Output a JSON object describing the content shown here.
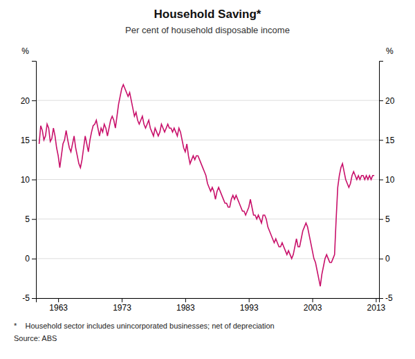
{
  "chart_data": {
    "type": "line",
    "title": "Household Saving*",
    "subtitle": "Per cent of household disposable income",
    "ylabel": "%",
    "y2label": "%",
    "annotations": [
      "*    Household sector includes unincorporated businesses; net of depreciation",
      "Source: ABS"
    ],
    "color": "#C8106A",
    "grid": true,
    "xlim": [
      1959.5,
      2013.5
    ],
    "xticks": [
      1963,
      1973,
      1983,
      1993,
      2003,
      2013
    ],
    "ylim": [
      -5,
      25
    ],
    "yticks": [
      -5,
      0,
      5,
      10,
      15,
      20
    ],
    "y2lim": [
      -5,
      25
    ],
    "y2ticks": [
      -5,
      0,
      5,
      10,
      15,
      20
    ],
    "x": [
      1960.0,
      1960.25,
      1960.5,
      1960.75,
      1961.0,
      1961.25,
      1961.5,
      1961.75,
      1962.0,
      1962.25,
      1962.5,
      1962.75,
      1963.0,
      1963.25,
      1963.5,
      1963.75,
      1964.0,
      1964.25,
      1964.5,
      1964.75,
      1965.0,
      1965.25,
      1965.5,
      1965.75,
      1966.0,
      1966.25,
      1966.5,
      1966.75,
      1967.0,
      1967.25,
      1967.5,
      1967.75,
      1968.0,
      1968.25,
      1968.5,
      1968.75,
      1969.0,
      1969.25,
      1969.5,
      1969.75,
      1970.0,
      1970.25,
      1970.5,
      1970.75,
      1971.0,
      1971.25,
      1971.5,
      1971.75,
      1972.0,
      1972.25,
      1972.5,
      1972.75,
      1973.0,
      1973.25,
      1973.5,
      1973.75,
      1974.0,
      1974.25,
      1974.5,
      1974.75,
      1975.0,
      1975.25,
      1975.5,
      1975.75,
      1976.0,
      1976.25,
      1976.5,
      1976.75,
      1977.0,
      1977.25,
      1977.5,
      1977.75,
      1978.0,
      1978.25,
      1978.5,
      1978.75,
      1979.0,
      1979.25,
      1979.5,
      1979.75,
      1980.0,
      1980.25,
      1980.5,
      1980.75,
      1981.0,
      1981.25,
      1981.5,
      1981.75,
      1982.0,
      1982.25,
      1982.5,
      1982.75,
      1983.0,
      1983.25,
      1983.5,
      1983.75,
      1984.0,
      1984.25,
      1984.5,
      1984.75,
      1985.0,
      1985.25,
      1985.5,
      1985.75,
      1986.0,
      1986.25,
      1986.5,
      1986.75,
      1987.0,
      1987.25,
      1987.5,
      1987.75,
      1988.0,
      1988.25,
      1988.5,
      1988.75,
      1989.0,
      1989.25,
      1989.5,
      1989.75,
      1990.0,
      1990.25,
      1990.5,
      1990.75,
      1991.0,
      1991.25,
      1991.5,
      1991.75,
      1992.0,
      1992.25,
      1992.5,
      1992.75,
      1993.0,
      1993.25,
      1993.5,
      1993.75,
      1994.0,
      1994.25,
      1994.5,
      1994.75,
      1995.0,
      1995.25,
      1995.5,
      1995.75,
      1996.0,
      1996.25,
      1996.5,
      1996.75,
      1997.0,
      1997.25,
      1997.5,
      1997.75,
      1998.0,
      1998.25,
      1998.5,
      1998.75,
      1999.0,
      1999.25,
      1999.5,
      1999.75,
      2000.0,
      2000.25,
      2000.5,
      2000.75,
      2001.0,
      2001.25,
      2001.5,
      2001.75,
      2002.0,
      2002.25,
      2002.5,
      2002.75,
      2003.0,
      2003.25,
      2003.5,
      2003.75,
      2004.0,
      2004.25,
      2004.5,
      2004.75,
      2005.0,
      2005.25,
      2005.5,
      2005.75,
      2006.0,
      2006.25,
      2006.5,
      2006.75,
      2007.0,
      2007.25,
      2007.5,
      2007.75,
      2008.0,
      2008.25,
      2008.5,
      2008.75,
      2009.0,
      2009.25,
      2009.5,
      2009.75,
      2010.0,
      2010.25,
      2010.5,
      2010.75,
      2011.0,
      2011.25,
      2011.5,
      2011.75,
      2012.0,
      2012.25,
      2012.5,
      2012.75
    ],
    "values": [
      14.5,
      16.8,
      16.2,
      15.0,
      15.5,
      17.0,
      16.5,
      14.8,
      15.2,
      16.5,
      15.5,
      14.0,
      13.0,
      11.5,
      13.0,
      14.5,
      15.0,
      16.2,
      15.0,
      14.0,
      13.5,
      14.5,
      15.5,
      14.0,
      13.0,
      12.0,
      11.5,
      12.5,
      14.0,
      15.5,
      14.5,
      13.5,
      15.0,
      16.0,
      16.8,
      17.0,
      17.5,
      16.5,
      15.5,
      16.5,
      16.0,
      17.0,
      16.5,
      15.5,
      16.5,
      17.5,
      18.0,
      17.5,
      16.5,
      18.0,
      19.5,
      20.5,
      21.5,
      22.0,
      21.5,
      21.0,
      20.5,
      21.0,
      20.0,
      19.0,
      18.0,
      18.5,
      17.5,
      17.0,
      17.5,
      18.0,
      17.0,
      16.5,
      17.0,
      17.5,
      16.5,
      16.0,
      15.5,
      16.5,
      16.0,
      15.5,
      16.0,
      17.0,
      16.5,
      16.0,
      16.5,
      17.0,
      16.5,
      16.5,
      16.0,
      16.5,
      16.0,
      15.5,
      16.5,
      16.0,
      15.0,
      14.0,
      13.5,
      14.5,
      13.0,
      12.0,
      12.5,
      13.0,
      12.5,
      13.0,
      13.0,
      12.5,
      12.0,
      11.5,
      11.0,
      10.5,
      9.5,
      9.0,
      8.5,
      9.0,
      8.5,
      7.5,
      8.5,
      9.0,
      8.5,
      8.0,
      7.5,
      7.0,
      7.0,
      6.5,
      6.5,
      7.5,
      8.0,
      7.5,
      8.0,
      7.5,
      7.0,
      6.5,
      6.0,
      6.0,
      5.5,
      6.0,
      6.5,
      7.5,
      6.5,
      5.5,
      5.5,
      5.0,
      5.5,
      5.0,
      4.5,
      5.5,
      5.5,
      5.0,
      4.0,
      3.5,
      3.0,
      2.5,
      2.0,
      2.5,
      2.0,
      1.5,
      1.5,
      2.0,
      1.5,
      1.0,
      0.5,
      1.0,
      0.5,
      0.0,
      0.5,
      1.5,
      2.5,
      1.5,
      1.5,
      2.5,
      3.5,
      4.0,
      4.5,
      4.0,
      3.0,
      2.0,
      1.0,
      0.0,
      -0.5,
      -1.5,
      -2.5,
      -3.5,
      -2.0,
      -1.0,
      0.0,
      0.5,
      0.0,
      -0.5,
      -0.5,
      0.0,
      0.5,
      5.0,
      9.0,
      10.5,
      11.5,
      12.0,
      11.0,
      10.0,
      9.5,
      9.0,
      9.5,
      10.5,
      11.0,
      10.5,
      10.0,
      10.5,
      10.0,
      10.5,
      10.5,
      10.0,
      10.5,
      10.0,
      10.5,
      10.0,
      10.5,
      10.5
    ]
  }
}
